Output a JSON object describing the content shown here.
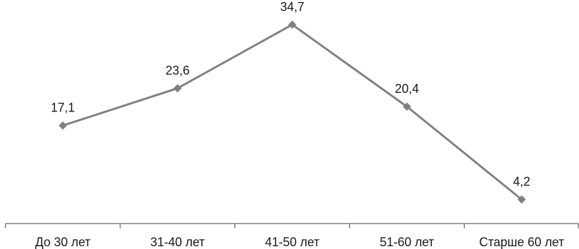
{
  "chart_data": {
    "type": "line",
    "categories": [
      "До 30 лет",
      "31-40 лет",
      "41-50 лет",
      "51-60 лет",
      "Старше 60 лет"
    ],
    "series": [
      {
        "values": [
          17.1,
          23.6,
          34.7,
          20.4,
          4.2
        ],
        "data_labels": [
          "17,1",
          "23,6",
          "34,7",
          "20,4",
          "4,2"
        ],
        "color": "#808080",
        "marker": "diamond"
      }
    ],
    "title": "",
    "xlabel": "",
    "ylabel": "",
    "ylim": [
      0,
      39
    ],
    "grid": false,
    "legend": "none",
    "axis_color": "#404040"
  }
}
